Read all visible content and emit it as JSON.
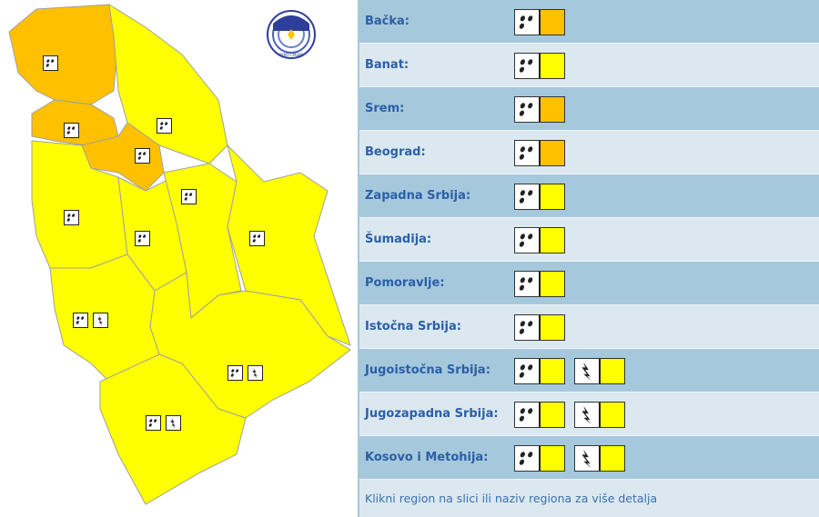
{
  "colors": {
    "orange": "#ffc000",
    "yellow": "#ffff00"
  },
  "logo_text": "РХМЗ СРБИЈЕ",
  "regions": [
    {
      "name": "Bačka:",
      "warnings": [
        {
          "icon": "rain-icon",
          "level": "orange"
        }
      ]
    },
    {
      "name": "Banat:",
      "warnings": [
        {
          "icon": "rain-icon",
          "level": "yellow"
        }
      ]
    },
    {
      "name": "Srem:",
      "warnings": [
        {
          "icon": "rain-icon",
          "level": "orange"
        }
      ]
    },
    {
      "name": "Beograd:",
      "warnings": [
        {
          "icon": "rain-icon",
          "level": "orange"
        }
      ]
    },
    {
      "name": "Zapadna Srbija:",
      "warnings": [
        {
          "icon": "rain-icon",
          "level": "yellow"
        }
      ]
    },
    {
      "name": "Šumadija:",
      "warnings": [
        {
          "icon": "rain-icon",
          "level": "yellow"
        }
      ]
    },
    {
      "name": "Pomoravlje:",
      "warnings": [
        {
          "icon": "rain-icon",
          "level": "yellow"
        }
      ]
    },
    {
      "name": "Istočna Srbija:",
      "warnings": [
        {
          "icon": "rain-icon",
          "level": "yellow"
        }
      ]
    },
    {
      "name": "Jugoistočna Srbija:",
      "warnings": [
        {
          "icon": "rain-icon",
          "level": "yellow"
        },
        {
          "icon": "thunderstorm-icon",
          "level": "yellow"
        }
      ]
    },
    {
      "name": "Jugozapadna Srbija:",
      "warnings": [
        {
          "icon": "rain-icon",
          "level": "yellow"
        },
        {
          "icon": "thunderstorm-icon",
          "level": "yellow"
        }
      ]
    },
    {
      "name": "Kosovo i Metohija:",
      "warnings": [
        {
          "icon": "rain-icon",
          "level": "yellow"
        },
        {
          "icon": "thunderstorm-icon",
          "level": "yellow"
        }
      ]
    }
  ],
  "footer": "Klikni region na slici ili naziv regiona za više detalja"
}
